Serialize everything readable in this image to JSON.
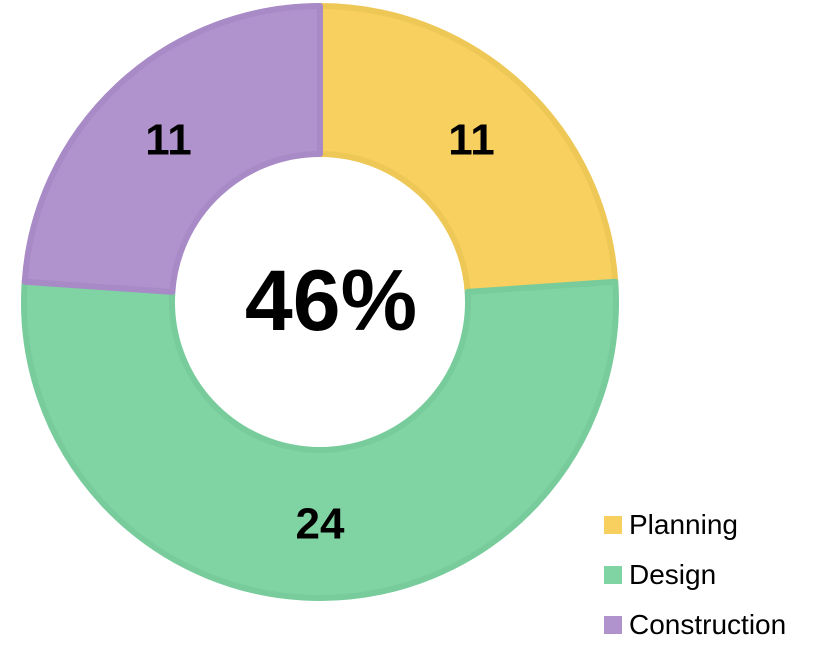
{
  "chart_data": {
    "type": "pie",
    "variant": "donut",
    "center_text": "46%",
    "categories": [
      "Planning",
      "Design",
      "Construction"
    ],
    "values": [
      11,
      24,
      11
    ],
    "colors": [
      "#f7d060",
      "#80d4a4",
      "#b092cc"
    ],
    "edge_colors": [
      "#eec857",
      "#78cc9c",
      "#a88ac6"
    ],
    "legend": {
      "position": "bottom-right",
      "entries": [
        "Planning",
        "Design",
        "Construction"
      ]
    }
  }
}
